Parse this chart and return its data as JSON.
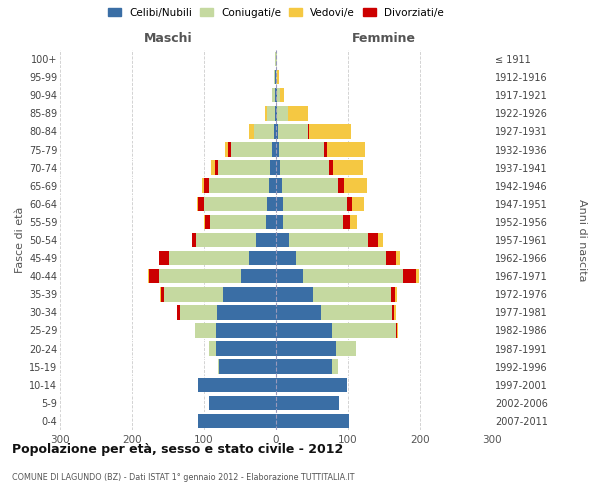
{
  "age_groups": [
    "0-4",
    "5-9",
    "10-14",
    "15-19",
    "20-24",
    "25-29",
    "30-34",
    "35-39",
    "40-44",
    "45-49",
    "50-54",
    "55-59",
    "60-64",
    "65-69",
    "70-74",
    "75-79",
    "80-84",
    "85-89",
    "90-94",
    "95-99",
    "100+"
  ],
  "birth_years": [
    "2007-2011",
    "2002-2006",
    "1997-2001",
    "1992-1996",
    "1987-1991",
    "1982-1986",
    "1977-1981",
    "1972-1976",
    "1967-1971",
    "1962-1966",
    "1957-1961",
    "1952-1956",
    "1947-1951",
    "1942-1946",
    "1937-1941",
    "1932-1936",
    "1927-1931",
    "1922-1926",
    "1917-1921",
    "1912-1916",
    "≤ 1911"
  ],
  "male_celibi": [
    108,
    93,
    108,
    79,
    83,
    84,
    82,
    73,
    48,
    38,
    28,
    14,
    12,
    10,
    8,
    5,
    3,
    2,
    1,
    1,
    0
  ],
  "male_coniugati": [
    0,
    0,
    0,
    2,
    10,
    28,
    52,
    82,
    115,
    110,
    83,
    78,
    88,
    83,
    72,
    58,
    28,
    10,
    4,
    2,
    1
  ],
  "male_vedovi": [
    0,
    0,
    0,
    0,
    0,
    0,
    0,
    1,
    1,
    1,
    1,
    1,
    2,
    3,
    5,
    5,
    7,
    3,
    1,
    0,
    0
  ],
  "male_divorziati": [
    0,
    0,
    0,
    0,
    0,
    1,
    3,
    5,
    14,
    14,
    5,
    7,
    8,
    7,
    5,
    3,
    0,
    0,
    0,
    0,
    0
  ],
  "female_nubili": [
    102,
    88,
    98,
    78,
    83,
    78,
    63,
    52,
    38,
    28,
    18,
    10,
    10,
    8,
    6,
    4,
    3,
    2,
    1,
    0,
    0
  ],
  "female_coniugate": [
    0,
    0,
    0,
    8,
    28,
    88,
    98,
    108,
    138,
    125,
    110,
    83,
    88,
    78,
    68,
    62,
    42,
    14,
    5,
    2,
    1
  ],
  "female_vedove": [
    0,
    0,
    0,
    0,
    0,
    1,
    2,
    3,
    5,
    5,
    7,
    9,
    16,
    33,
    42,
    52,
    58,
    28,
    5,
    2,
    1
  ],
  "female_divorziate": [
    0,
    0,
    0,
    0,
    0,
    2,
    3,
    5,
    18,
    14,
    14,
    10,
    8,
    8,
    5,
    5,
    1,
    0,
    0,
    0,
    0
  ],
  "color_celibi": "#3a6ea5",
  "color_coniugati": "#c5d9a0",
  "color_vedovi": "#f5c842",
  "color_divorziati": "#cc0000",
  "title": "Popolazione per età, sesso e stato civile - 2012",
  "subtitle": "COMUNE DI LAGUNDO (BZ) - Dati ISTAT 1° gennaio 2012 - Elaborazione TUTTITALIA.IT",
  "label_maschi": "Maschi",
  "label_femmine": "Femmine",
  "ylabel_left": "Fasce di età",
  "ylabel_right": "Anni di nascita",
  "xlim": 300,
  "bg_color": "#ffffff",
  "grid_color": "#cccccc",
  "legend_labels": [
    "Celibi/Nubili",
    "Coniugati/e",
    "Vedovi/e",
    "Divorziati/e"
  ]
}
